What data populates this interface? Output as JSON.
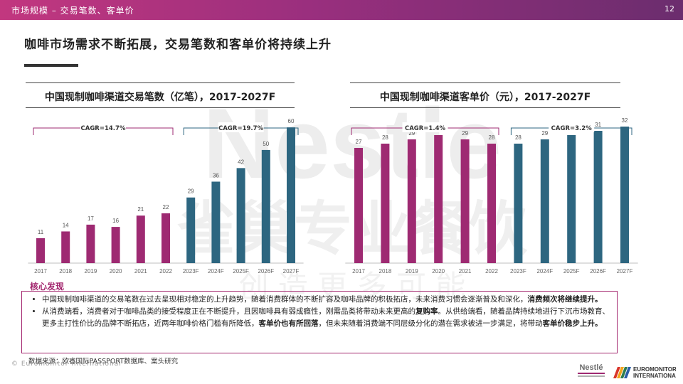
{
  "header": {
    "crumb": "市场规模 – 交易笔数、客单价",
    "page_number": "12"
  },
  "headline": "咖啡市场需求不断拓展，交易笔数和客单价将持续上升",
  "watermark": {
    "text": "Nestle",
    "subtext": "雀巢专业餐饮",
    "subtext2": "创 造 更 多 可 能"
  },
  "colors": {
    "actual": "#9e2a72",
    "forecast": "#2d6680",
    "accent": "#a3266e"
  },
  "chart_data": [
    {
      "type": "bar",
      "title": "中国现制咖啡渠道交易笔数（亿笔），2017-2027F",
      "categories": [
        "2017",
        "2018",
        "2019",
        "2020",
        "2021",
        "2022",
        "2023F",
        "2024F",
        "2025F",
        "2026F",
        "2027F"
      ],
      "values": [
        11,
        14,
        17,
        16,
        21,
        22,
        29,
        36,
        42,
        50,
        60
      ],
      "forecast_start_index": 6,
      "ylim": [
        0,
        66
      ],
      "cagr": [
        {
          "label": "CAGR=14.7%",
          "from": 0,
          "to": 5
        },
        {
          "label": "CAGR=19.7%",
          "from": 6,
          "to": 10
        }
      ]
    },
    {
      "type": "bar",
      "title": "中国现制咖啡渠道客单价（元），2017-2027F",
      "categories": [
        "2017",
        "2018",
        "2019",
        "2020",
        "2021",
        "2022",
        "2023F",
        "2024F",
        "2025F",
        "2026F",
        "2027F"
      ],
      "values": [
        27,
        28,
        29,
        30,
        29,
        28,
        28,
        29,
        30,
        31,
        32
      ],
      "forecast_start_index": 6,
      "ylim": [
        0,
        35
      ],
      "cagr": [
        {
          "label": "CAGR=1.4%",
          "from": 0,
          "to": 5
        },
        {
          "label": "CAGR=3.2%",
          "from": 6,
          "to": 10
        }
      ]
    }
  ],
  "findings": {
    "label": "核心发现",
    "bullet1": {
      "text": "中国现制咖啡渠道的交易笔数在过去呈现相对稳定的上升趋势，随着消费群体的不断扩容及咖啡品牌的积极拓店，未来消费习惯会逐渐普及和深化，",
      "bold": "消费频次将继续提升。"
    },
    "bullet2": {
      "p1": "从消费端看，消费者对于咖啡品类的接受程度正在不断提升，且因咖啡具有弱成瘾性，刚需品类将带动未来更高的",
      "b1": "复购率",
      "p2": "。从供给端看，随着品牌持续地进行下沉市场教育、更多主打性价比的品牌不断拓店，近两年咖啡价格门槛有所降低，",
      "b2": "客单价也有所回落",
      "p3": "，但未来随着消费端不同层级分化的潜在需求被进一步满足，将带动",
      "b3": "客单价稳步上升。"
    }
  },
  "source": "数据来源：欧睿国际PASSPORT数据库、案头研究",
  "copyright": "© Euromonitor International",
  "logos": {
    "nestle": "Nestlé",
    "euromonitor_line1": "EUROMONITOR",
    "euromonitor_line2": "INTERNATIONAL"
  }
}
